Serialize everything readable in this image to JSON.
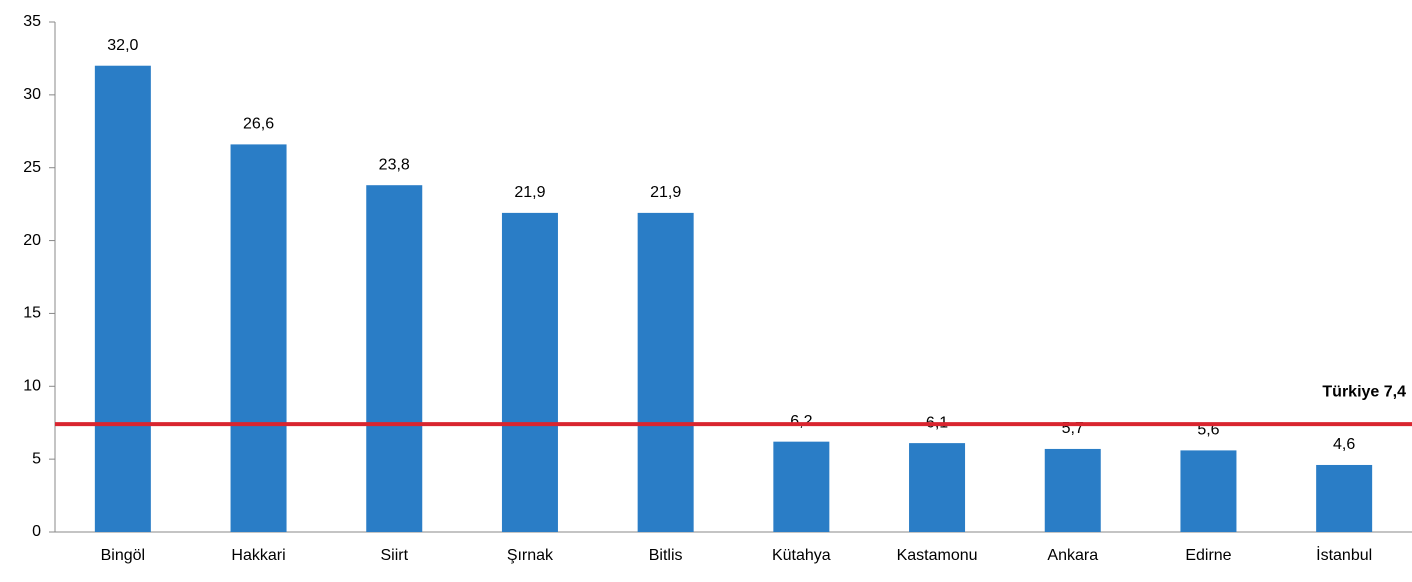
{
  "chart_data": {
    "type": "bar",
    "categories": [
      "Bingöl",
      "Hakkari",
      "Siirt",
      "Şırnak",
      "Bitlis",
      "Kütahya",
      "Kastamonu",
      "Ankara",
      "Edirne",
      "İstanbul"
    ],
    "values": [
      32.0,
      26.6,
      23.8,
      21.9,
      21.9,
      6.2,
      6.1,
      5.7,
      5.6,
      4.6
    ],
    "value_labels": [
      "32,0",
      "26,6",
      "23,8",
      "21,9",
      "21,9",
      "6,2",
      "6,1",
      "5,7",
      "5,6",
      "4,6"
    ],
    "color": "#2a7dc6",
    "reference_line": {
      "value": 7.4,
      "label": "Türkiye 7,4",
      "color": "#d9252f"
    },
    "ylim": [
      0,
      35
    ],
    "yticks": [
      0,
      5,
      10,
      15,
      20,
      25,
      30,
      35
    ],
    "grid": false
  }
}
